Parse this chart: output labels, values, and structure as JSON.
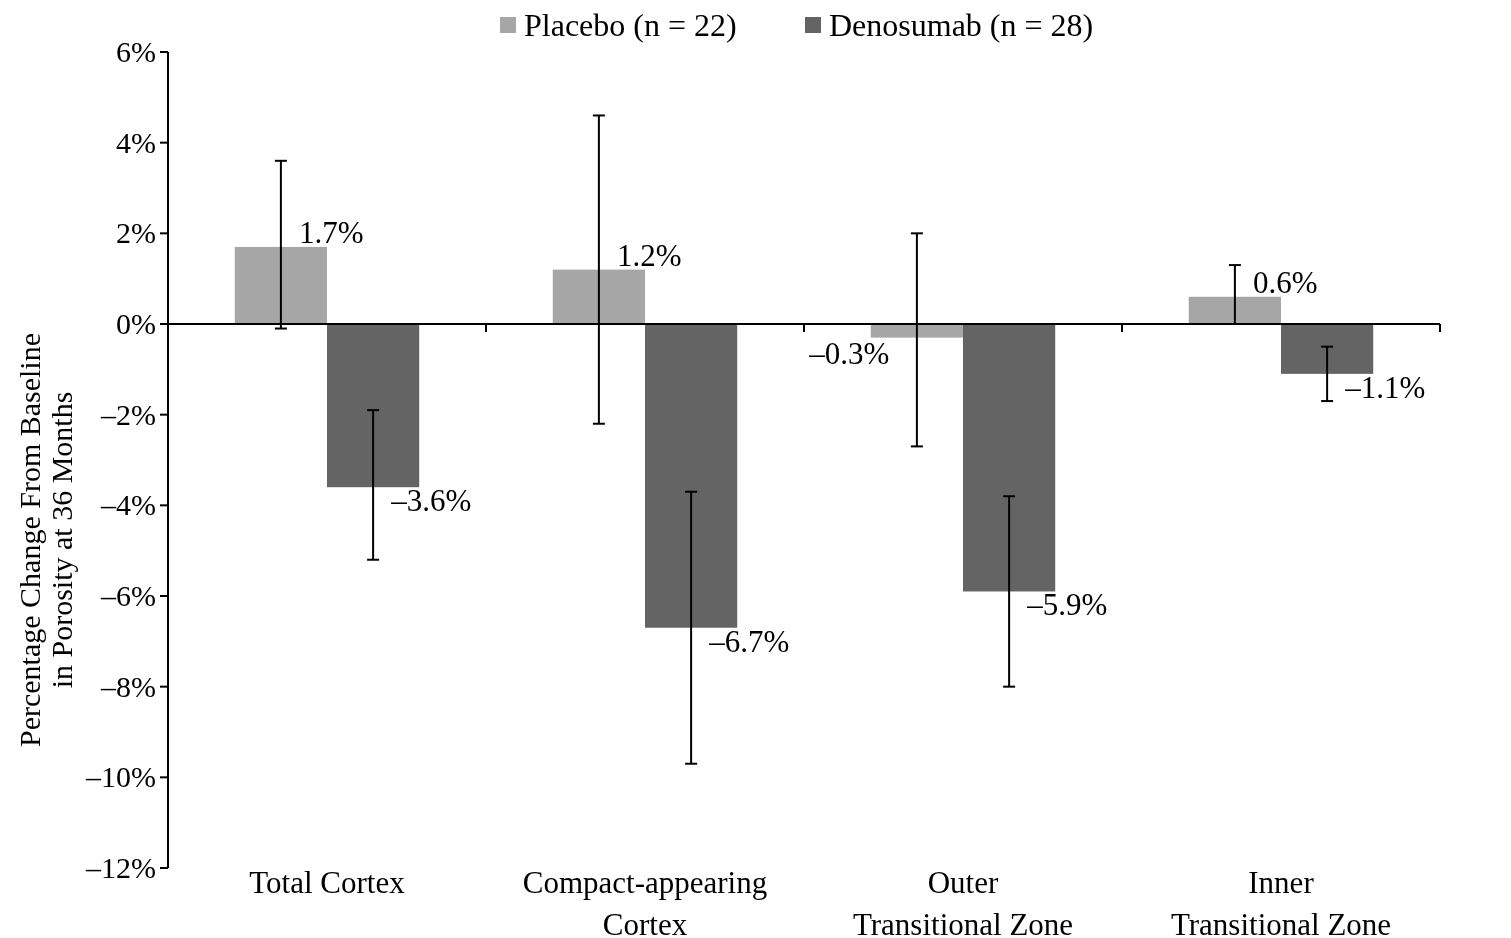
{
  "chart_data": {
    "type": "bar",
    "ylabel": "Percentage Change From Baseline in Porosity at 36 Months",
    "categories": [
      "Total Cortex",
      "Compact-appearing Cortex",
      "Outer Transitional Zone",
      "Inner Transitional Zone"
    ],
    "series": [
      {
        "name": "Placebo (n = 22)",
        "color": "#a6a6a6",
        "values": [
          1.7,
          1.2,
          -0.3,
          0.6
        ],
        "errors": [
          [
            -0.1,
            3.6
          ],
          [
            -2.2,
            4.6
          ],
          [
            -2.7,
            2.0
          ],
          [
            0,
            1.3
          ]
        ],
        "value_labels": [
          "1.7%",
          "1.2%",
          "–0.3%",
          "0.6%"
        ]
      },
      {
        "name": "Denosumab (n = 28)",
        "color": "#646464",
        "values": [
          -3.6,
          -6.7,
          -5.9,
          -1.1
        ],
        "errors": [
          [
            -5.2,
            -1.9
          ],
          [
            -9.7,
            -3.7
          ],
          [
            -8.0,
            -3.8
          ],
          [
            -1.7,
            -0.5
          ]
        ],
        "value_labels": [
          "–3.6%",
          "–6.7%",
          "–5.9%",
          "–1.1%"
        ]
      }
    ],
    "ylim": [
      -12,
      6
    ],
    "yticks": [
      {
        "value": 6,
        "label": "6%"
      },
      {
        "value": 4,
        "label": "4%"
      },
      {
        "value": 2,
        "label": "2%"
      },
      {
        "value": 0,
        "label": "0%"
      },
      {
        "value": -2,
        "label": "–2%"
      },
      {
        "value": -4,
        "label": "–4%"
      },
      {
        "value": -6,
        "label": "–6%"
      },
      {
        "value": -8,
        "label": "–8%"
      },
      {
        "value": -10,
        "label": "–10%"
      },
      {
        "value": -12,
        "label": "–12%"
      }
    ],
    "legend": "top"
  }
}
